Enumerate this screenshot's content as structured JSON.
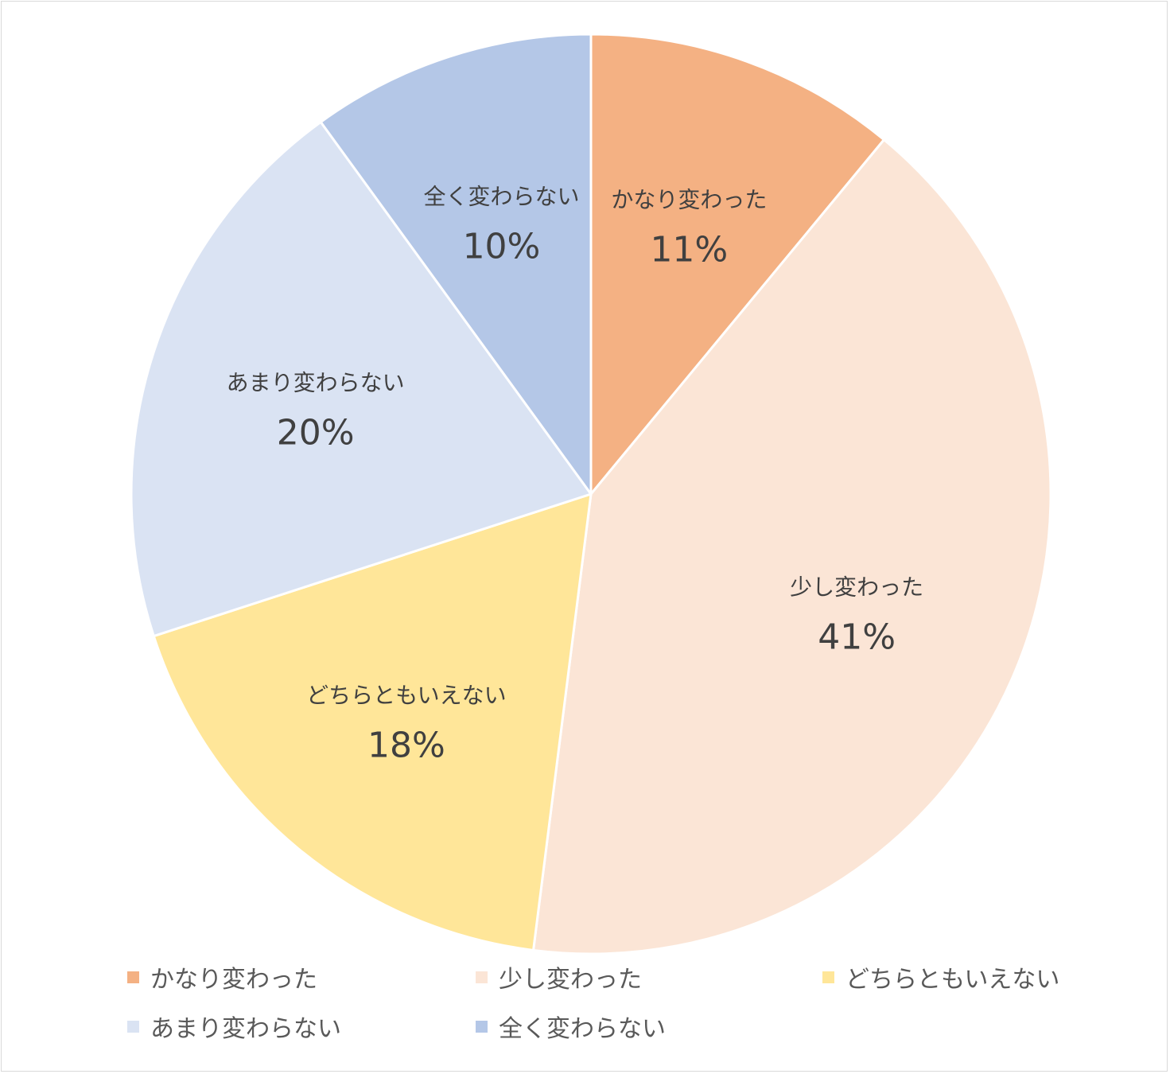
{
  "chart_data": {
    "type": "pie",
    "categories": [
      "かなり変わった",
      "少し変わった",
      "どちらともいえない",
      "あまり変わらない",
      "全く変わらない"
    ],
    "values": [
      11,
      41,
      18,
      20,
      10
    ],
    "value_labels": [
      "11%",
      "41%",
      "18%",
      "20%",
      "10%"
    ],
    "colors": [
      "#F4B183",
      "#FBE5D6",
      "#FFE699",
      "#DAE3F3",
      "#B4C7E7"
    ],
    "start": "12 o'clock",
    "direction": "clockwise",
    "legend_position": "bottom"
  }
}
